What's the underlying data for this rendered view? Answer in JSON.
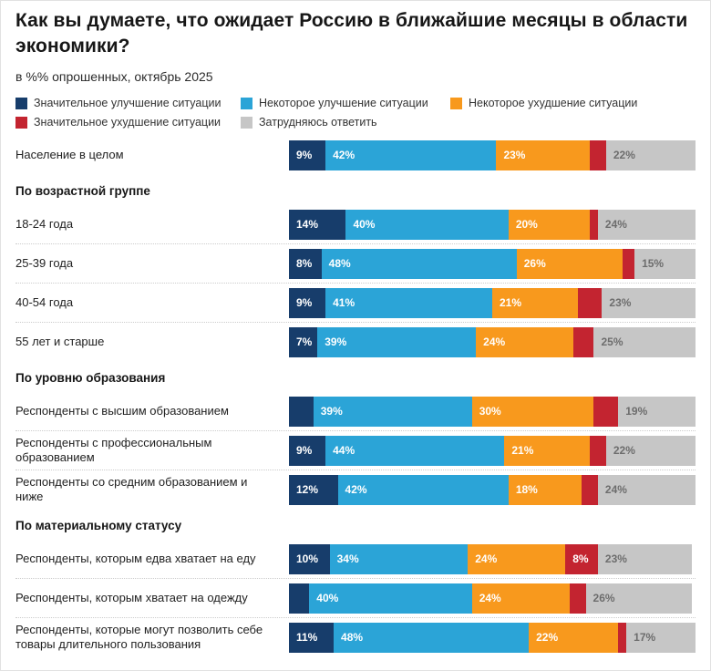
{
  "page": {
    "title": "Как вы думаете, что ожидает Россию в ближайшие месяцы в области экономики?",
    "subtitle": "в %% опрошенных, октябрь 2025"
  },
  "colors": {
    "significant_improvement": "#173d6b",
    "some_improvement": "#2ba4d7",
    "some_worsening": "#f8991d",
    "significant_worsening": "#c32430",
    "hard_to_answer": "#c6c6c6",
    "gray_segment_label_text": "#6d6d6d",
    "separator": "#cccccc"
  },
  "chart_data": {
    "type": "bar",
    "variant": "horizontal-stacked",
    "unit": "percent",
    "xlim": [
      0,
      100
    ],
    "grid": false,
    "legend_position": "top",
    "title": "Как вы думаете, что ожидает Россию в ближайшие месяцы в области экономики?",
    "subtitle": "в %% опрошенных, октябрь 2025",
    "series": [
      {
        "name": "Значительное улучшение ситуации",
        "color": "#173d6b",
        "label_color": "#ffffff"
      },
      {
        "name": "Некоторое улучшение ситуации",
        "color": "#2ba4d7",
        "label_color": "#ffffff"
      },
      {
        "name": "Некоторое ухудшение ситуации",
        "color": "#f8991d",
        "label_color": "#ffffff"
      },
      {
        "name": "Значительное ухудшение ситуации",
        "color": "#c32430",
        "label_color": "#ffffff"
      },
      {
        "name": "Затрудняюсь ответить",
        "color": "#c6c6c6",
        "label_color": "#6d6d6d"
      }
    ],
    "groups": [
      {
        "header": "",
        "rows": [
          {
            "category": "Население в целом",
            "values": [
              9,
              42,
              23,
              4,
              22
            ],
            "labels": [
              "9%",
              "42%",
              "23%",
              "",
              "22%"
            ]
          }
        ]
      },
      {
        "header": "По возрастной группе",
        "rows": [
          {
            "category": "18-24 года",
            "values": [
              14,
              40,
              20,
              2,
              24
            ],
            "labels": [
              "14%",
              "40%",
              "20%",
              "",
              "24%"
            ]
          },
          {
            "category": "25-39 года",
            "values": [
              8,
              48,
              26,
              3,
              15
            ],
            "labels": [
              "8%",
              "48%",
              "26%",
              "",
              "15%"
            ]
          },
          {
            "category": "40-54 года",
            "values": [
              9,
              41,
              21,
              6,
              23
            ],
            "labels": [
              "9%",
              "41%",
              "21%",
              "",
              "23%"
            ]
          },
          {
            "category": "55 лет и старше",
            "values": [
              7,
              39,
              24,
              5,
              25
            ],
            "labels": [
              "7%",
              "39%",
              "24%",
              "",
              "25%"
            ]
          }
        ]
      },
      {
        "header": "По уровню образования",
        "rows": [
          {
            "category": "Респонденты с высшим образованием",
            "values": [
              6,
              39,
              30,
              6,
              19
            ],
            "labels": [
              "",
              "39%",
              "30%",
              "",
              "19%"
            ]
          },
          {
            "category": "Респонденты с профессиональным образованием",
            "values": [
              9,
              44,
              21,
              4,
              22
            ],
            "labels": [
              "9%",
              "44%",
              "21%",
              "",
              "22%"
            ]
          },
          {
            "category": "Респонденты со средним образованием и ниже",
            "values": [
              12,
              42,
              18,
              4,
              24
            ],
            "labels": [
              "12%",
              "42%",
              "18%",
              "",
              "24%"
            ]
          }
        ]
      },
      {
        "header": "По материальному статусу",
        "rows": [
          {
            "category": "Респонденты, которым едва хватает на еду",
            "values": [
              10,
              34,
              24,
              8,
              23
            ],
            "labels": [
              "10%",
              "34%",
              "24%",
              "8%",
              "23%"
            ]
          },
          {
            "category": "Респонденты, которым хватает на одежду",
            "values": [
              5,
              40,
              24,
              4,
              26
            ],
            "labels": [
              "",
              "40%",
              "24%",
              "",
              "26%"
            ]
          },
          {
            "category": "Респонденты, которые могут позволить себе товары длительного пользования",
            "values": [
              11,
              48,
              22,
              2,
              17
            ],
            "labels": [
              "11%",
              "48%",
              "22%",
              "",
              "17%"
            ]
          }
        ]
      }
    ]
  }
}
